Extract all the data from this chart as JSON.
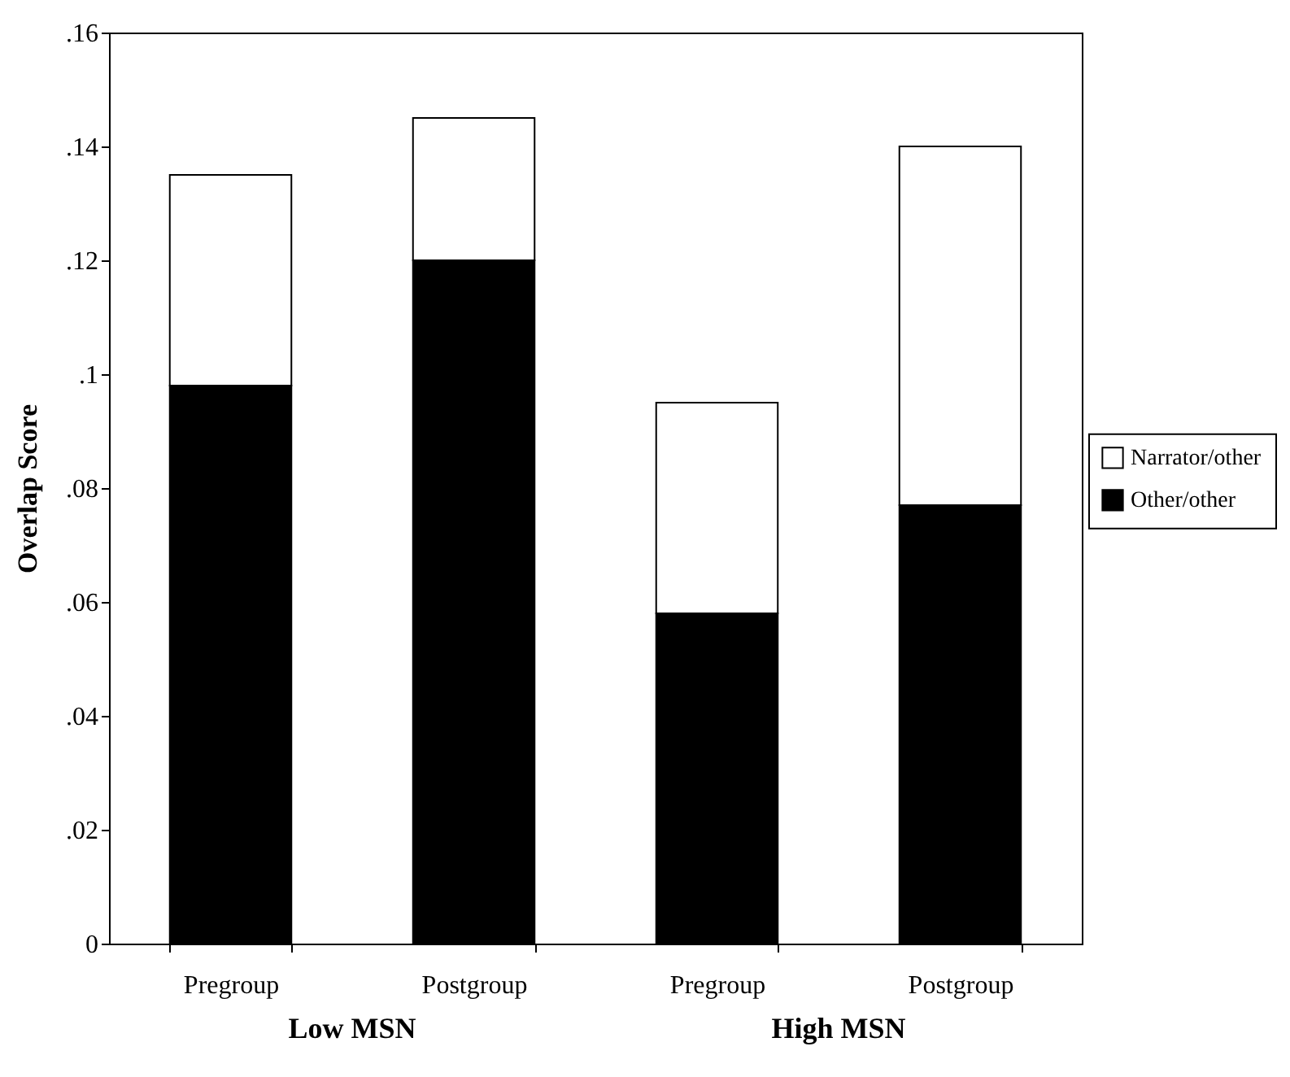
{
  "chart_data": {
    "type": "bar",
    "stacked": true,
    "ylabel": "Overlap Score",
    "categories": [
      "Pregroup",
      "Postgroup",
      "Pregroup",
      "Postgroup"
    ],
    "series": [
      {
        "name": "Other/other",
        "color": "#000000",
        "values": [
          0.098,
          0.12,
          0.058,
          0.077
        ]
      },
      {
        "name": "Narrator/other",
        "color": "#ffffff",
        "values": [
          0.037,
          0.025,
          0.037,
          0.063
        ]
      }
    ],
    "ylim": [
      0,
      0.16
    ],
    "yticks": [
      {
        "value": 0,
        "label": "0"
      },
      {
        "value": 0.02,
        "label": ".02"
      },
      {
        "value": 0.04,
        "label": ".04"
      },
      {
        "value": 0.06,
        "label": ".06"
      },
      {
        "value": 0.08,
        "label": ".08"
      },
      {
        "value": 0.1,
        "label": ".1"
      },
      {
        "value": 0.12,
        "label": ".12"
      },
      {
        "value": 0.14,
        "label": ".14"
      },
      {
        "value": 0.16,
        "label": ".16"
      }
    ],
    "annotations": [
      "Low MSN",
      "High MSN"
    ],
    "grid": false,
    "legend": "right"
  }
}
